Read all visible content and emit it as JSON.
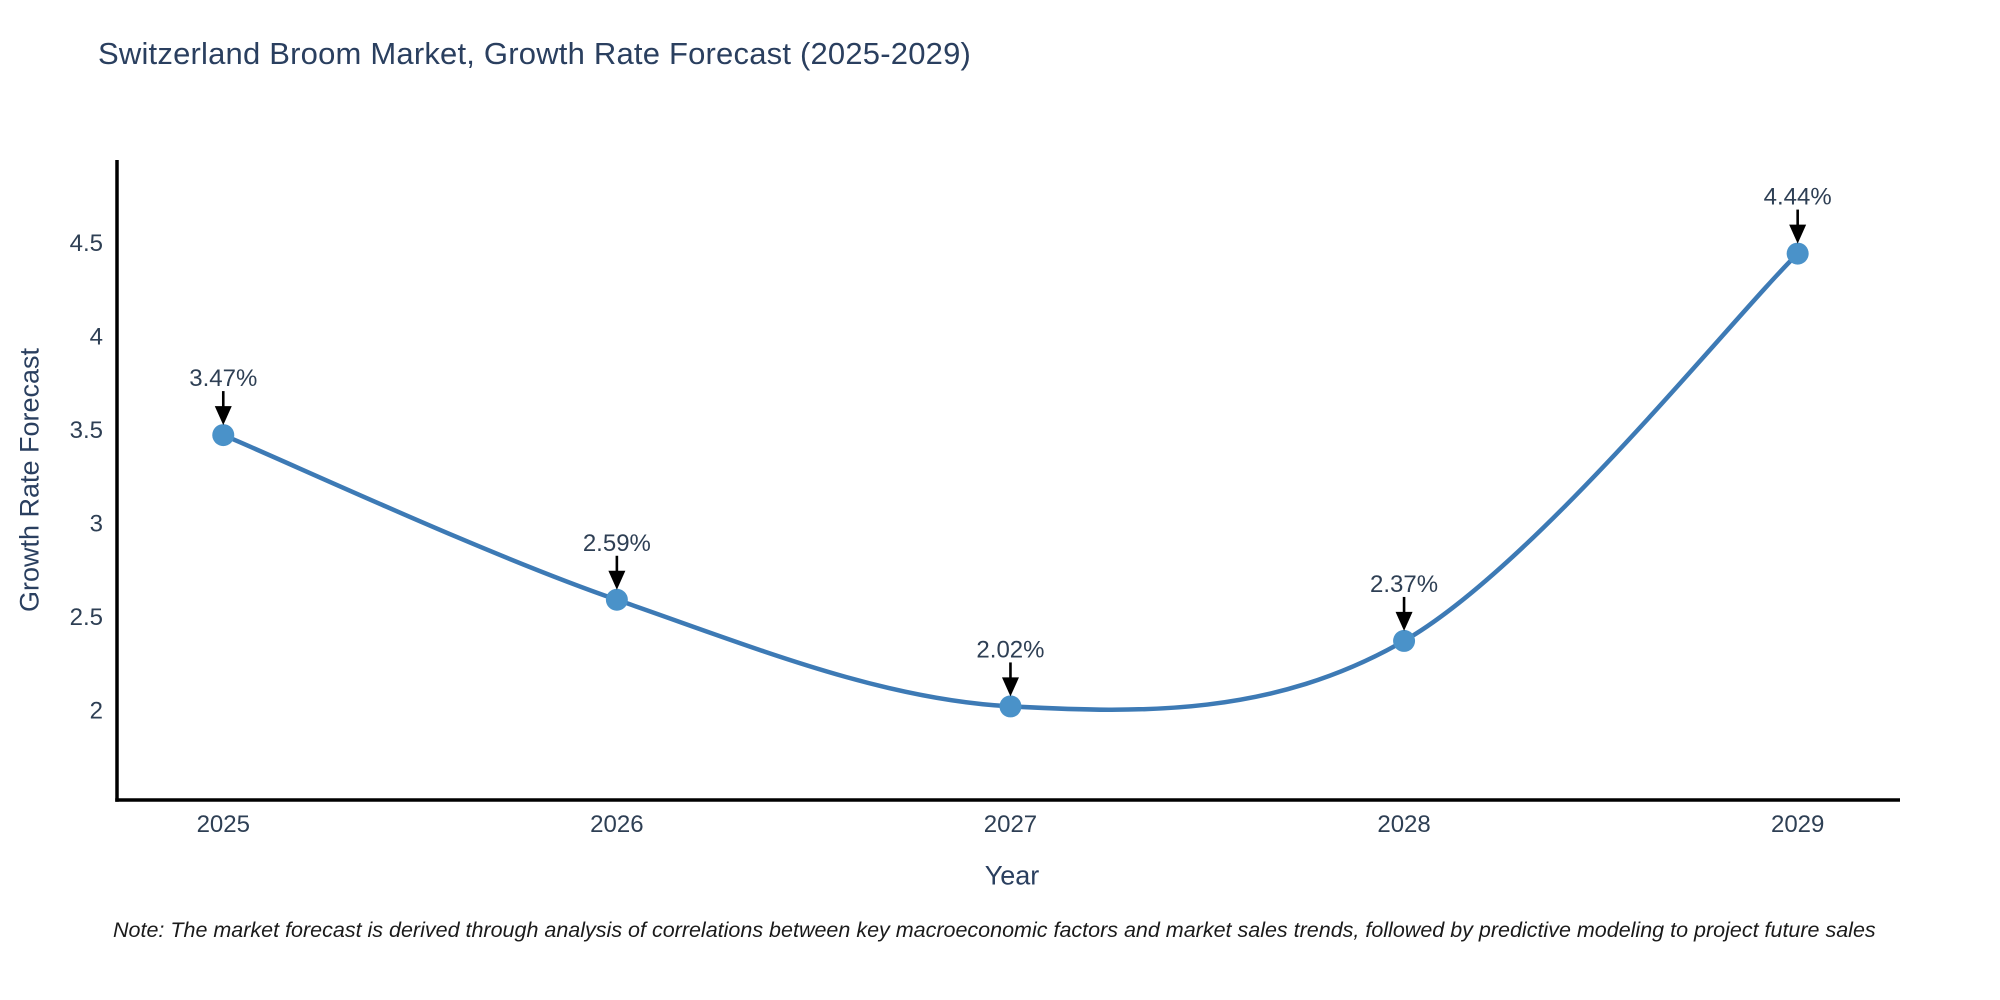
{
  "chart_data": {
    "type": "line",
    "title": "Switzerland Broom Market, Growth Rate Forecast (2025-2029)",
    "xlabel": "Year",
    "ylabel": "Growth Rate Forecast",
    "x": [
      2025,
      2026,
      2027,
      2028,
      2029
    ],
    "x_tick_labels": [
      "2025",
      "2026",
      "2027",
      "2028",
      "2029"
    ],
    "series": [
      {
        "name": "Growth Rate Forecast",
        "values": [
          3.47,
          2.59,
          2.02,
          2.37,
          4.44
        ]
      }
    ],
    "point_labels": [
      "3.47%",
      "2.59%",
      "2.02%",
      "2.37%",
      "4.44%"
    ],
    "yticks": [
      2,
      2.5,
      3,
      3.5,
      4,
      4.5
    ],
    "ytick_labels": [
      "2",
      "2.5",
      "3",
      "3.5",
      "4",
      "4.5"
    ],
    "xlim": [
      2024.73,
      2029.26
    ],
    "ylim": [
      1.52,
      4.94
    ],
    "line_shape": "spline",
    "grid": false,
    "legend": "none",
    "colors": {
      "line": "#3d7ab5",
      "marker": "#4a92c9",
      "axis": "#000000",
      "tick_text": "#2e3f54",
      "title_text": "#2a3f5f",
      "annotation_text": "#2e3f54",
      "annotation_arrow": "#000000",
      "note_text": "#1a1a1a"
    },
    "note": "Note: The market forecast is derived through analysis of correlations between key macroeconomic factors and market sales trends, followed by predictive modeling to project future sales"
  }
}
